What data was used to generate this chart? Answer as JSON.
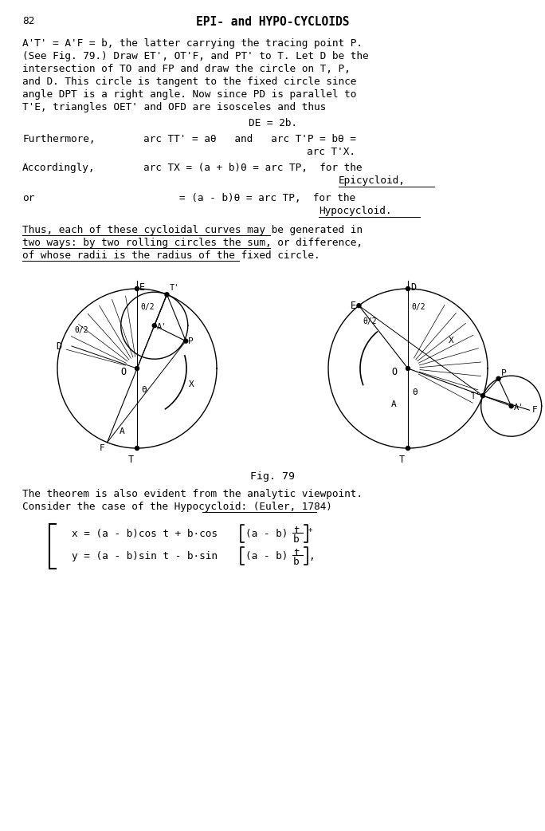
{
  "page_number": "82",
  "title": "EPI- and HYPO-CYCLOIDS",
  "bg_color": "#ffffff",
  "text_color": "#000000",
  "font_family": "monospace",
  "para1_lines": [
    "A'T' = A'F = b, the latter carrying the tracing point P.",
    "(See Fig. 79.) Draw ET', OT'F, and PT' to T. Let D be the",
    "intersection of TO and FP and draw the circle on T, P,",
    "and D. This circle is tangent to the fixed circle since",
    "angle DPT is a right angle. Now since PD is parallel to",
    "T'E, triangles OET' and OFD are isosceles and thus"
  ],
  "eq1_center": "DE = 2b.",
  "furthermore_left": "Furthermore,",
  "furthermore_right1": "arc TT' = aθ   and   arc T'P = bθ =",
  "furthermore_right2": "arc T'X.",
  "accordingly_left": "Accordingly,",
  "accordingly_right1": "arc TX = (a + b)θ = arc TP,  for the",
  "accordingly_right2": "Epicycloid,",
  "or_left": "or",
  "or_right1": "= (a - b)θ = arc TP,  for the",
  "or_right2": "Hypocycloid.",
  "thus_lines": [
    "Thus, each of these cycloidal curves may be generated in",
    "two ways: by two rolling circles the sum, or difference,",
    "of whose radii is the radius of the fixed circle."
  ],
  "fig_label": "Fig. 79",
  "bot_lines": [
    "The theorem is also evident from the analytic viewpoint.",
    "Consider the case of the Hypocycloid: (Euler, 1784)"
  ],
  "eq1_left": "x = (a - b)cos t + b·cos",
  "eq1_mid": "(a - b)",
  "eq1_frac_num": "t",
  "eq1_frac_den": "b",
  "eq1_sup": "+",
  "eq2_left": "y = (a - b)sin t - b·sin",
  "eq2_mid": "(a - b)",
  "eq2_frac_num": "t",
  "eq2_frac_den": "b",
  "eq2_end": ",",
  "fig_width": 6.84,
  "fig_height": 10.42,
  "fs": 9.2,
  "lh": 16,
  "fs_title": 10.5
}
